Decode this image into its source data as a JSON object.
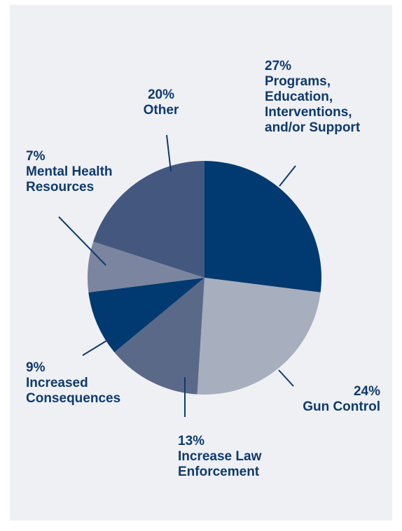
{
  "chart_data": {
    "type": "pie",
    "start_angle_deg": 0,
    "direction": "clockwise",
    "slices": [
      {
        "label": "Programs, Education, Interventions, and/or Support",
        "percent_text": "27%",
        "value": 27,
        "color": "#003a70"
      },
      {
        "label": "Gun Control",
        "percent_text": "24%",
        "value": 24,
        "color": "#a7afbe"
      },
      {
        "label": "Increase Law Enforcement",
        "percent_text": "13%",
        "value": 13,
        "color": "#5b6988"
      },
      {
        "label": "Increased Consequences",
        "percent_text": "9%",
        "value": 9,
        "color": "#003a70"
      },
      {
        "label": "Mental Health Resources",
        "percent_text": "7%",
        "value": 7,
        "color": "#7b85a0"
      },
      {
        "label": "Other",
        "percent_text": "20%",
        "value": 20,
        "color": "#44587f"
      }
    ],
    "label_lines": [
      {
        "pct": "27%",
        "lines": [
          "Programs,",
          "Education,",
          "Interventions,",
          "and/or Support"
        ]
      },
      {
        "pct": "24%",
        "lines": [
          "Gun Control"
        ]
      },
      {
        "pct": "13%",
        "lines": [
          "Increase Law",
          "Enforcement"
        ]
      },
      {
        "pct": "9%",
        "lines": [
          "Increased",
          "Consequences"
        ]
      },
      {
        "pct": "7%",
        "lines": [
          "Mental Health",
          "Resources"
        ]
      },
      {
        "pct": "20%",
        "lines": [
          "Other"
        ]
      }
    ]
  },
  "colors": {
    "background": "#eff0f3",
    "label_text": "#0e3a6e",
    "leader_line": "#0e3a6e"
  }
}
